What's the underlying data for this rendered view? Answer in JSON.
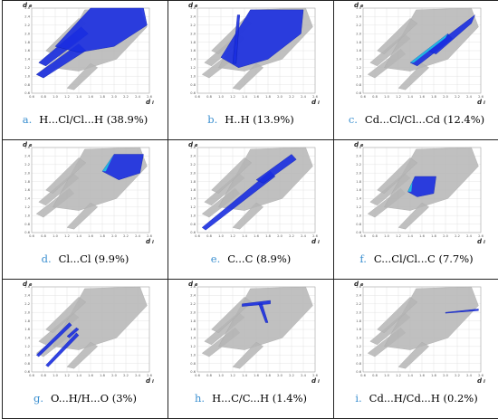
{
  "axes": {
    "x_label": "d",
    "x_sub": "i",
    "y_label": "d",
    "y_sub": "e",
    "x_ticks": [
      "0.6",
      "0.8",
      "1.0",
      "1.2",
      "1.4",
      "1.6",
      "1.8",
      "2.0",
      "2.2",
      "2.4",
      "2.6"
    ],
    "y_ticks": [
      "2.6",
      "2.4",
      "2.2",
      "2.0",
      "1.8",
      "1.6",
      "1.4",
      "1.2",
      "1.0",
      "0.8",
      "0.6"
    ]
  },
  "colors": {
    "grey_points": "#b5b5b5",
    "blue_points": "#1a2ee0",
    "accent_cyan": "#22c8e0",
    "caption_letter": "#3a8fd0"
  },
  "panels": [
    {
      "letter": "a.",
      "label": "H...Cl/Cl...H (38.9%)",
      "highlight": "wings"
    },
    {
      "letter": "b.",
      "label": "H..H (13.9%)",
      "highlight": "central-spikes"
    },
    {
      "letter": "c.",
      "label": "Cd...Cl/Cl...Cd (12.4%)",
      "highlight": "diagonal-tip"
    },
    {
      "letter": "d.",
      "label": "Cl...Cl (9.9%)",
      "highlight": "upper-right-blob"
    },
    {
      "letter": "e.",
      "label": "C...C (8.9%)",
      "highlight": "long-diagonal"
    },
    {
      "letter": "f.",
      "label": "C...Cl/Cl...C (7.7%)",
      "highlight": "central-blob"
    },
    {
      "letter": "g.",
      "label": "O...H/H...O (3%)",
      "highlight": "twin-spikes"
    },
    {
      "letter": "h.",
      "label": "H...C/C...H (1.4%)",
      "highlight": "upper-bar"
    },
    {
      "letter": "i.",
      "label": "Cd...H/Cd...H (0.2%)",
      "highlight": "faint-edge"
    }
  ]
}
